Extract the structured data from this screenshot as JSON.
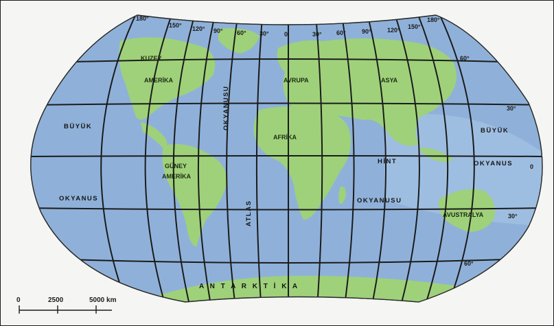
{
  "map": {
    "colors": {
      "ocean": "#8fb1d9",
      "land": "#9fd17a",
      "grid": "#1b1b1b",
      "background": "#f5f5f3"
    },
    "continents": {
      "north_america_1": "KUZEY",
      "north_america_2": "AMERİKA",
      "south_america_1": "GÜNEY",
      "south_america_2": "AMERİKA",
      "europe": "AVRUPA",
      "asia": "ASYA",
      "africa": "AFRİKA",
      "australia": "AVUSTRALYA",
      "antarctica": "A N T A R K T İ K A"
    },
    "oceans": {
      "pacific_west_1": "BÜYÜK",
      "pacific_west_2": "OKYANUS",
      "pacific_east_1": "BÜYÜK",
      "pacific_east_2": "OKYANUS",
      "indian_1": "HİNT",
      "indian_2": "OKYANUSU",
      "atlantic_1": "ATLAS",
      "atlantic_2": "OKYANUSU"
    },
    "longitude_labels": [
      "180°",
      "150°",
      "120°",
      "90°",
      "60°",
      "30°",
      "0",
      "30°",
      "60°",
      "90°",
      "120°",
      "150°",
      "180°"
    ],
    "latitude_labels": [
      "60°",
      "30°",
      "0",
      "30°",
      "60°"
    ],
    "scale": {
      "start": "0",
      "mid": "2500",
      "end": "5000 km"
    }
  }
}
